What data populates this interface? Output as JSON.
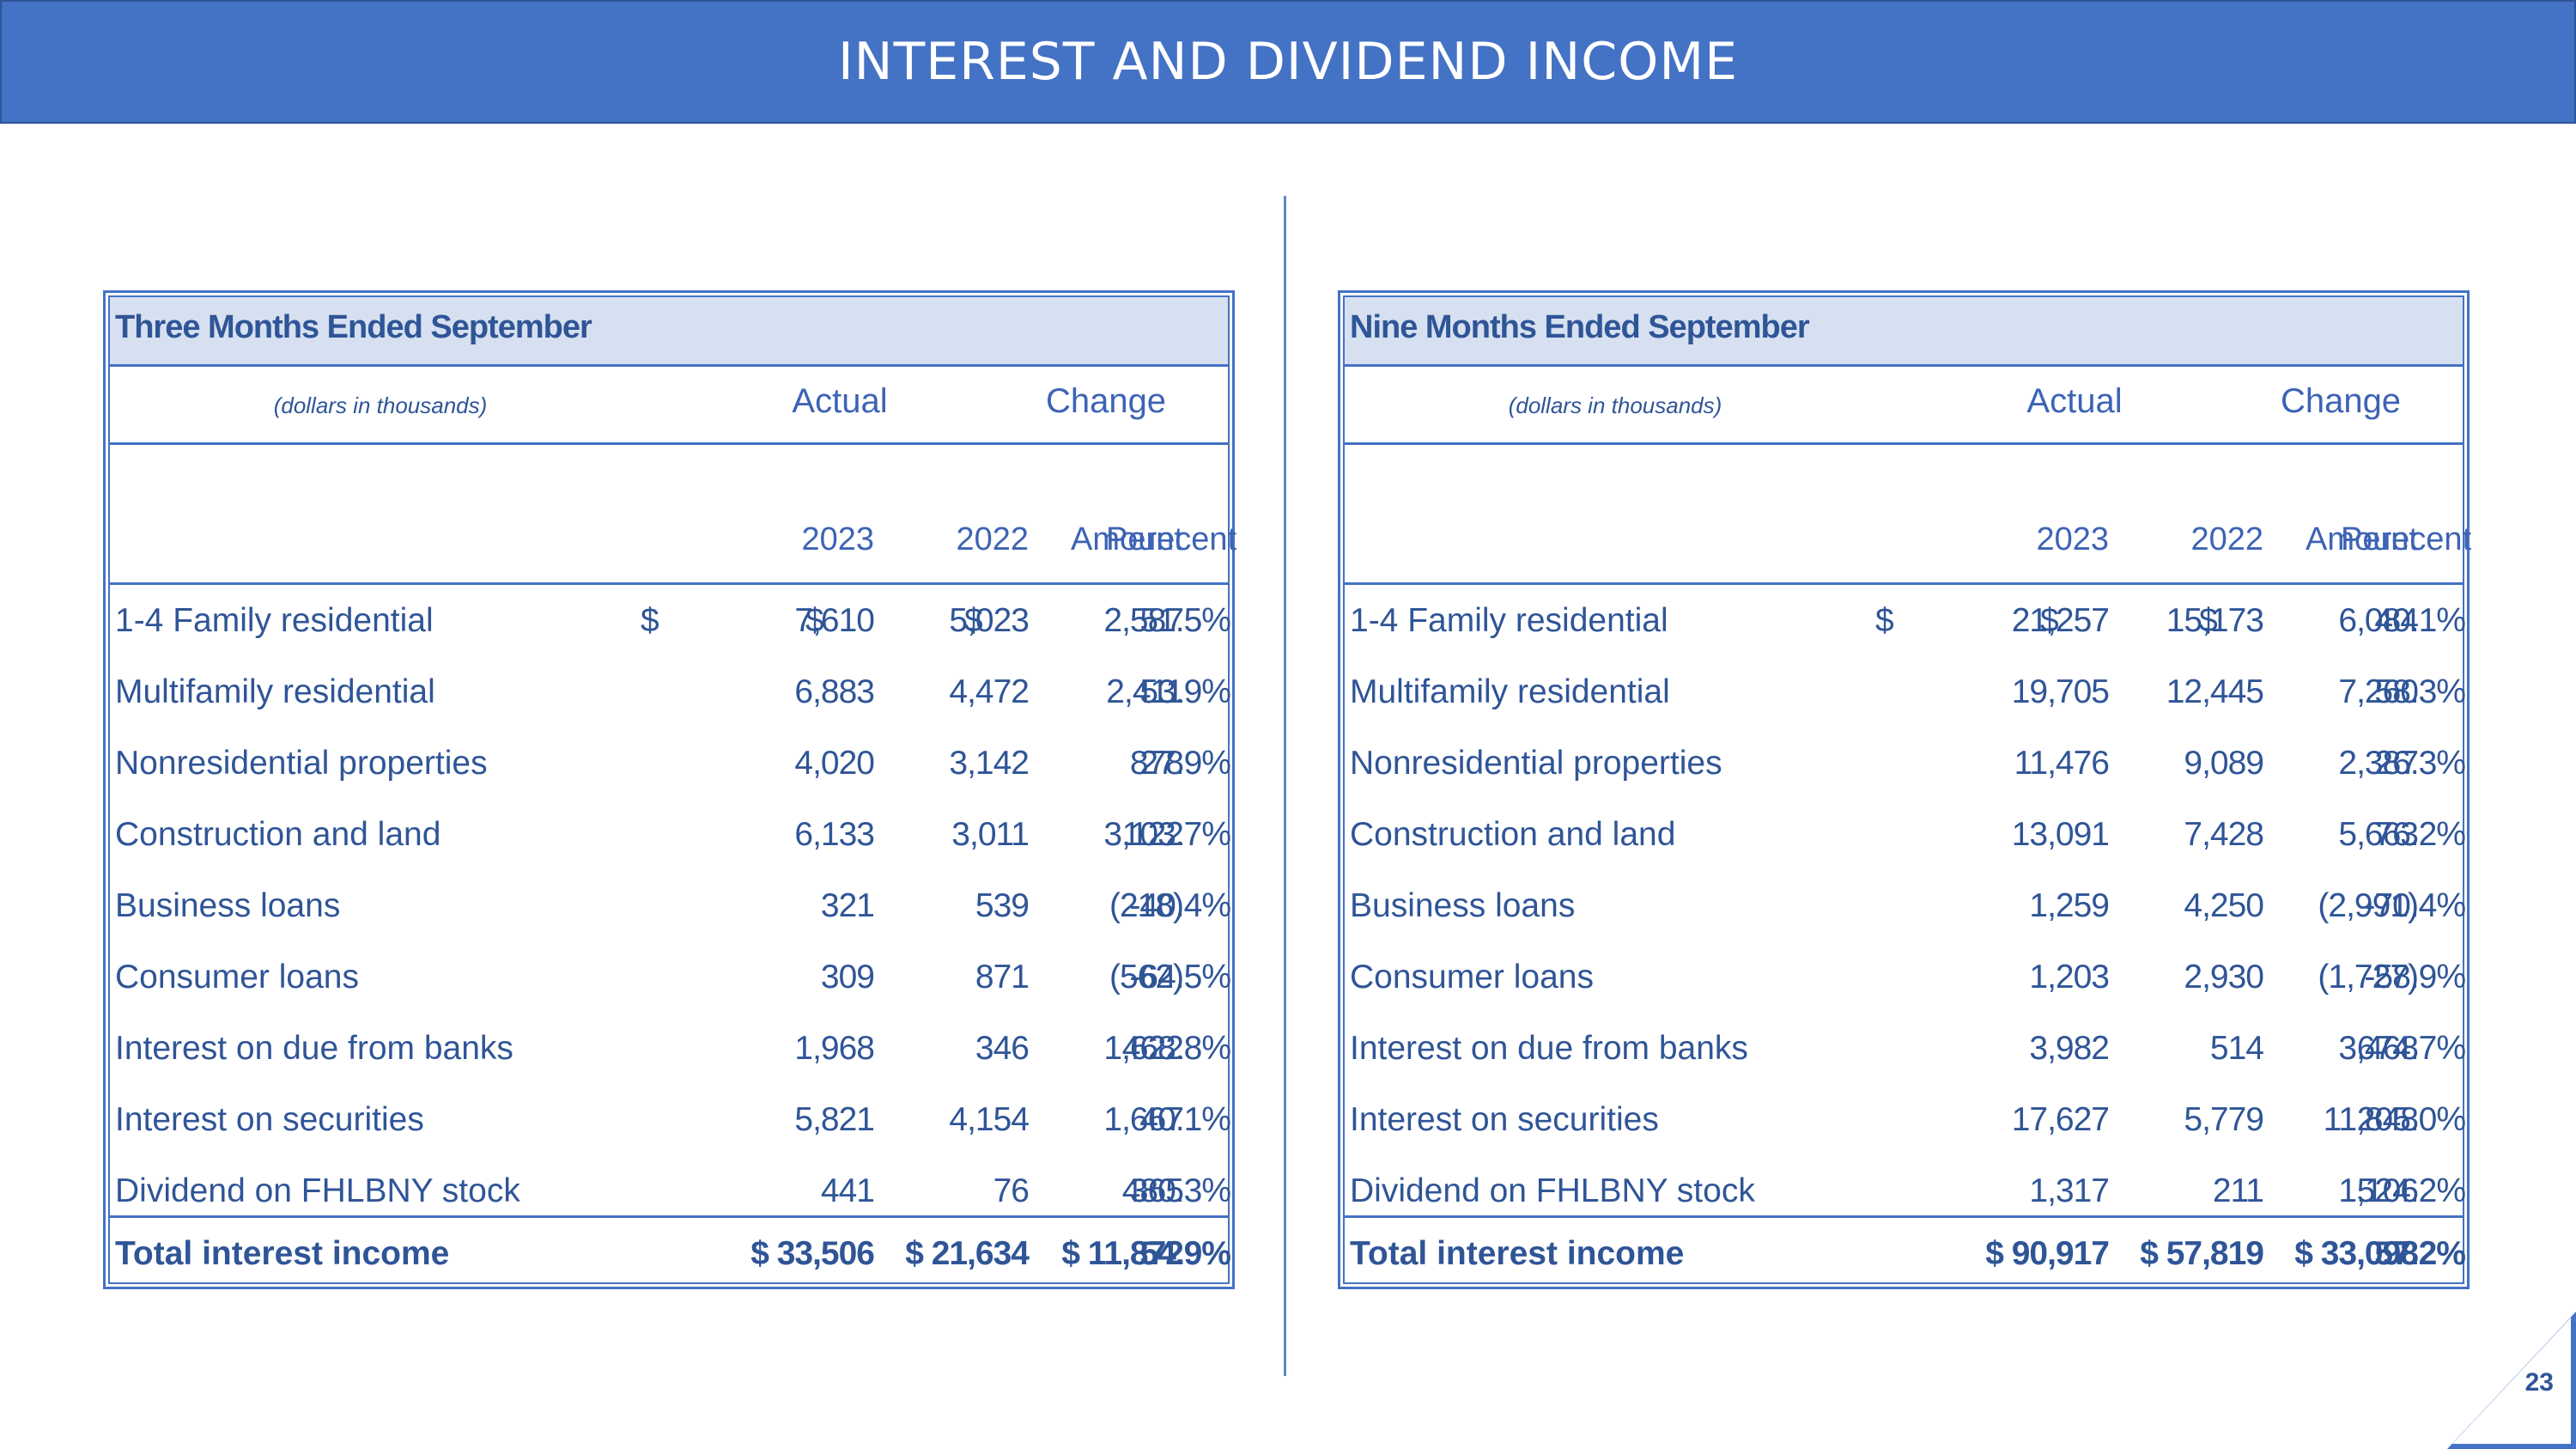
{
  "title": "INTEREST AND DIVIDEND INCOME",
  "page_number": "23",
  "panels": {
    "left": {
      "title": "Three Months Ended September",
      "units": "(dollars in thousands)",
      "group_actual": "Actual",
      "group_change": "Change",
      "col_2023": "2023",
      "col_2022": "2022",
      "col_amount": "Amount",
      "col_percent": "Perecent",
      "rows": [
        {
          "label": "1-4 Family residential",
          "v2023": "7,610",
          "v2022": "5,023",
          "amount": "2,587",
          "pct": "51.5%",
          "d1": "$",
          "d2": "$",
          "d3": "$"
        },
        {
          "label": "Multifamily residential",
          "v2023": "6,883",
          "v2022": "4,472",
          "amount": "2,411",
          "pct": "53.9%",
          "d1": "",
          "d2": "",
          "d3": ""
        },
        {
          "label": "Nonresidential properties",
          "v2023": "4,020",
          "v2022": "3,142",
          "amount": "878",
          "pct": "27.9%",
          "d1": "",
          "d2": "",
          "d3": ""
        },
        {
          "label": "Construction and land",
          "v2023": "6,133",
          "v2022": "3,011",
          "amount": "3,122",
          "pct": "103.7%",
          "d1": "",
          "d2": "",
          "d3": ""
        },
        {
          "label": "Business loans",
          "v2023": "321",
          "v2022": "539",
          "amount": "(218)",
          "pct": "-40.4%",
          "d1": "",
          "d2": "",
          "d3": ""
        },
        {
          "label": "Consumer loans",
          "v2023": "309",
          "v2022": "871",
          "amount": "(562)",
          "pct": "-64.5%",
          "d1": "",
          "d2": "",
          "d3": ""
        },
        {
          "label": "Interest on due from banks",
          "v2023": "1,968",
          "v2022": "346",
          "amount": "1,622",
          "pct": "468.8%",
          "d1": "",
          "d2": "",
          "d3": ""
        },
        {
          "label": "Interest on securities",
          "v2023": "5,821",
          "v2022": "4,154",
          "amount": "1,667",
          "pct": "40.1%",
          "d1": "",
          "d2": "",
          "d3": ""
        },
        {
          "label": "Dividend on FHLBNY stock",
          "v2023": "441",
          "v2022": "76",
          "amount": "365",
          "pct": "480.3%",
          "d1": "",
          "d2": "",
          "d3": ""
        }
      ],
      "total": {
        "label": "Total interest income",
        "v2023": "$ 33,506",
        "v2022": "$ 21,634",
        "amount": "$ 11,872",
        "pct": "54.9%"
      }
    },
    "right": {
      "title": "Nine Months Ended September",
      "units": "(dollars in thousands)",
      "group_actual": "Actual",
      "group_change": "Change",
      "col_2023": "2023",
      "col_2022": "2022",
      "col_amount": "Amount",
      "col_percent": "Perecent",
      "rows": [
        {
          "label": "1-4 Family residential",
          "v2023": "21,257",
          "v2022": "15,173",
          "amount": "6,084",
          "pct": "40.1%",
          "d1": "$",
          "d2": "$",
          "d3": "$"
        },
        {
          "label": "Multifamily residential",
          "v2023": "19,705",
          "v2022": "12,445",
          "amount": "7,260",
          "pct": "58.3%",
          "d1": "",
          "d2": "",
          "d3": ""
        },
        {
          "label": "Nonresidential properties",
          "v2023": "11,476",
          "v2022": "9,089",
          "amount": "2,387",
          "pct": "26.3%",
          "d1": "",
          "d2": "",
          "d3": ""
        },
        {
          "label": "Construction and land",
          "v2023": "13,091",
          "v2022": "7,428",
          "amount": "5,663",
          "pct": "76.2%",
          "d1": "",
          "d2": "",
          "d3": ""
        },
        {
          "label": "Business loans",
          "v2023": "1,259",
          "v2022": "4,250",
          "amount": "(2,991)",
          "pct": "-70.4%",
          "d1": "",
          "d2": "",
          "d3": ""
        },
        {
          "label": "Consumer loans",
          "v2023": "1,203",
          "v2022": "2,930",
          "amount": "(1,727)",
          "pct": "-58.9%",
          "d1": "",
          "d2": "",
          "d3": ""
        },
        {
          "label": "Interest on due from banks",
          "v2023": "3,982",
          "v2022": "514",
          "amount": "3,468",
          "pct": "674.7%",
          "d1": "",
          "d2": "",
          "d3": ""
        },
        {
          "label": "Interest on securities",
          "v2023": "17,627",
          "v2022": "5,779",
          "amount": "11,848",
          "pct": "205.0%",
          "d1": "",
          "d2": "",
          "d3": ""
        },
        {
          "label": "Dividend on FHLBNY stock",
          "v2023": "1,317",
          "v2022": "211",
          "amount": "1,106",
          "pct": "524.2%",
          "d1": "",
          "d2": "",
          "d3": ""
        }
      ],
      "total": {
        "label": "Total interest income",
        "v2023": "$ 90,917",
        "v2022": "$ 57,819",
        "amount": "$ 33,098",
        "pct": "57.2%"
      }
    }
  }
}
